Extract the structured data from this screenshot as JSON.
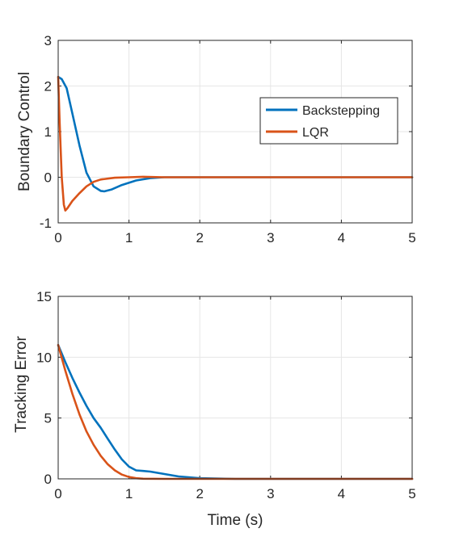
{
  "chart_data": [
    {
      "type": "line",
      "title": "",
      "xlabel": "",
      "ylabel": "Boundary Control",
      "xlim": [
        0,
        5
      ],
      "ylim": [
        -1,
        3
      ],
      "xticks": [
        "0",
        "1",
        "2",
        "3",
        "4",
        "5"
      ],
      "yticks": [
        "-1",
        "0",
        "1",
        "2",
        "3"
      ],
      "grid": true,
      "legend": {
        "position": "upper-right"
      },
      "series": [
        {
          "name": "Backstepping",
          "color": "#0072BD",
          "x": [
            0,
            0.05,
            0.12,
            0.2,
            0.3,
            0.4,
            0.5,
            0.6,
            0.65,
            0.75,
            0.9,
            1.1,
            1.3,
            1.5,
            1.7,
            2.0,
            2.5,
            3,
            4,
            5
          ],
          "y": [
            2.2,
            2.15,
            1.95,
            1.4,
            0.7,
            0.1,
            -0.2,
            -0.3,
            -0.31,
            -0.27,
            -0.17,
            -0.07,
            -0.02,
            0.0,
            0.0,
            0.0,
            0.0,
            0.0,
            0.0,
            0.0
          ]
        },
        {
          "name": "LQR",
          "color": "#D95319",
          "x": [
            0,
            0.02,
            0.05,
            0.08,
            0.1,
            0.13,
            0.2,
            0.3,
            0.4,
            0.5,
            0.6,
            0.8,
            1.0,
            1.2,
            1.5,
            2.0,
            3,
            4,
            5
          ],
          "y": [
            2.2,
            1.2,
            0.0,
            -0.6,
            -0.73,
            -0.68,
            -0.52,
            -0.35,
            -0.2,
            -0.1,
            -0.05,
            -0.01,
            0.0,
            0.01,
            0.0,
            0.0,
            0.0,
            0.0,
            0.0
          ]
        }
      ]
    },
    {
      "type": "line",
      "title": "",
      "xlabel": "Time (s)",
      "ylabel": "Tracking Error",
      "xlim": [
        0,
        5
      ],
      "ylim": [
        0,
        15
      ],
      "xticks": [
        "0",
        "1",
        "2",
        "3",
        "4",
        "5"
      ],
      "yticks": [
        "0",
        "5",
        "10",
        "15"
      ],
      "grid": true,
      "series": [
        {
          "name": "Backstepping",
          "color": "#0072BD",
          "x": [
            0,
            0.1,
            0.2,
            0.3,
            0.4,
            0.5,
            0.6,
            0.7,
            0.8,
            0.9,
            1.0,
            1.1,
            1.2,
            1.3,
            1.5,
            1.7,
            2.0,
            2.5,
            3,
            4,
            5
          ],
          "y": [
            11,
            9.6,
            8.3,
            7.1,
            6.0,
            5.0,
            4.2,
            3.3,
            2.4,
            1.6,
            1.0,
            0.7,
            0.65,
            0.6,
            0.4,
            0.2,
            0.05,
            0.0,
            0.0,
            0.0,
            0.0
          ]
        },
        {
          "name": "LQR",
          "color": "#D95319",
          "x": [
            0,
            0.1,
            0.2,
            0.3,
            0.4,
            0.5,
            0.6,
            0.7,
            0.8,
            0.9,
            1.0,
            1.1,
            1.2,
            1.5,
            2.0,
            3,
            4,
            5
          ],
          "y": [
            11,
            8.9,
            7.0,
            5.3,
            3.9,
            2.8,
            1.9,
            1.2,
            0.7,
            0.35,
            0.15,
            0.05,
            0.01,
            0.0,
            0.0,
            0.0,
            0.0,
            0.0
          ]
        }
      ]
    }
  ]
}
